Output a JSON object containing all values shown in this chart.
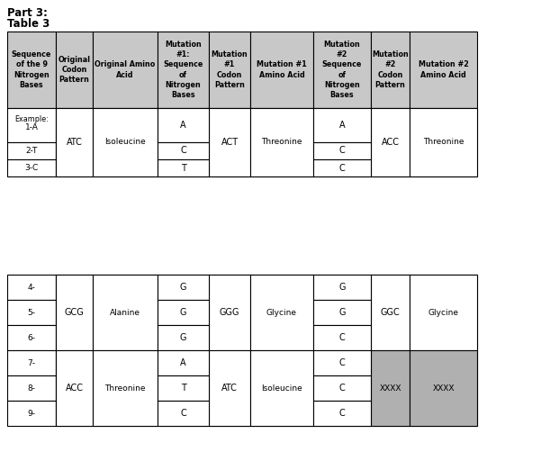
{
  "title_line1": "Part 3:",
  "title_line2": "Table 3",
  "header_bg": "#c8c8c8",
  "white_bg": "#ffffff",
  "gray_bg": "#b0b0b0",
  "table1": {
    "headers": [
      "Sequence\nof the 9\nNitrogen\nBases",
      "Original\nCodon\nPattern",
      "Original Amino\nAcid",
      "Mutation\n#1:\nSequence\nof\nNitrogen\nBases",
      "Mutation\n#1\nCodon\nPattern",
      "Mutation #1\nAmino Acid",
      "Mutation\n#2\nSequence\nof\nNitrogen\nBases",
      "Mutation\n#2\nCodon\nPattern",
      "Mutation #2\nAmino Acid"
    ],
    "codon": "ATC",
    "amino": "Isoleucine",
    "mut1_codon": "ACT",
    "mut1_amino": "Threonine",
    "mut2_codon": "ACC",
    "mut2_amino": "Threonine",
    "mut1_bases": [
      "A",
      "C",
      "T"
    ],
    "mut2_bases": [
      "A",
      "C",
      "C"
    ],
    "seq_labels": [
      "Example:\n\n1-A",
      "2-T",
      "3-C"
    ]
  },
  "table2": {
    "seqs_a": [
      "4-",
      "5-",
      "6-"
    ],
    "seqs_b": [
      "7-",
      "8-",
      "9-"
    ],
    "codon_a": "GCG",
    "amino_a": "Alanine",
    "mut1_codon_a": "GGG",
    "mut1_amino_a": "Glycine",
    "mut2_codon_a": "GGC",
    "mut2_amino_a": "Glycine",
    "mut1_bases_a": [
      "G",
      "G",
      "G"
    ],
    "mut2_bases_a": [
      "G",
      "G",
      "C"
    ],
    "codon_b": "ACC",
    "amino_b": "Threonine",
    "mut1_codon_b": "ATC",
    "mut1_amino_b": "Isoleucine",
    "mut2_codon_b": "XXXX",
    "mut2_amino_b": "XXXX",
    "mut1_bases_b": [
      "A",
      "T",
      "C"
    ],
    "mut2_bases_b": [
      "C",
      "C",
      "C"
    ]
  }
}
